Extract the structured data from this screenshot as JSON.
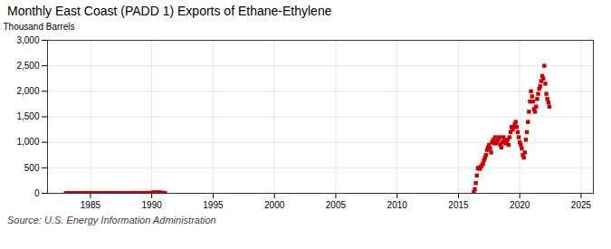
{
  "chart_data": {
    "type": "scatter",
    "title": "Monthly East Coast (PADD 1) Exports of Ethane-Ethylene",
    "ylabel": "Thousand Barrels",
    "caption": "Source: U.S. Energy Information Administration",
    "color": "#cc0000",
    "marker": "square",
    "grid": true,
    "xlim": [
      1981.5,
      2026
    ],
    "xticks": [
      1985,
      1990,
      1995,
      2000,
      2005,
      2010,
      2015,
      2020,
      2025
    ],
    "ylim": [
      0,
      3000
    ],
    "yticks": [
      0,
      500,
      {
        "value": 1000,
        "label": "1,000"
      },
      {
        "value": 1500,
        "label": "1,500"
      },
      {
        "value": 2000,
        "label": "2,000"
      },
      {
        "value": 2500,
        "label": "2,500"
      },
      {
        "value": 3000,
        "label": "3,000"
      }
    ],
    "x": [
      1983.0,
      1983.25,
      1983.5,
      1983.75,
      1984.0,
      1984.25,
      1984.5,
      1984.75,
      1985.0,
      1985.25,
      1985.5,
      1985.75,
      1986.0,
      1986.25,
      1986.5,
      1986.75,
      1987.0,
      1987.25,
      1987.5,
      1987.75,
      1988.0,
      1988.25,
      1988.5,
      1988.75,
      1989.0,
      1989.25,
      1989.5,
      1989.75,
      1990.0,
      1990.0833,
      1990.1667,
      1990.25,
      1990.3333,
      1990.4167,
      1990.5,
      1990.5833,
      1990.6667,
      1990.75,
      1990.8333,
      1990.9167,
      1991.0,
      1991.0833,
      2016.25,
      2016.3333,
      2016.4167,
      2016.5,
      2016.5833,
      2016.6667,
      2016.75,
      2016.8333,
      2016.9167,
      2017.0,
      2017.0833,
      2017.1667,
      2017.25,
      2017.3333,
      2017.4167,
      2017.5,
      2017.5833,
      2017.6667,
      2017.75,
      2017.8333,
      2017.9167,
      2018.0,
      2018.0833,
      2018.1667,
      2018.25,
      2018.3333,
      2018.4167,
      2018.5,
      2018.5833,
      2018.6667,
      2018.75,
      2018.8333,
      2018.9167,
      2019.0,
      2019.0833,
      2019.1667,
      2019.25,
      2019.3333,
      2019.4167,
      2019.5,
      2019.5833,
      2019.6667,
      2019.75,
      2019.8333,
      2019.9167,
      2020.0,
      2020.0833,
      2020.1667,
      2020.25,
      2020.3333,
      2020.4167,
      2020.5,
      2020.5833,
      2020.6667,
      2020.75,
      2020.8333,
      2020.9167,
      2021.0,
      2021.0833,
      2021.1667,
      2021.25,
      2021.3333,
      2021.4167,
      2021.5,
      2021.5833,
      2021.6667,
      2021.75,
      2021.8333,
      2021.9167,
      2022.0,
      2022.0833,
      2022.1667,
      2022.25,
      2022.3333,
      2022.4167
    ],
    "values": [
      3,
      5,
      4,
      6,
      5,
      4,
      7,
      5,
      4,
      6,
      5,
      3,
      5,
      4,
      6,
      5,
      4,
      7,
      5,
      4,
      6,
      5,
      8,
      6,
      7,
      5,
      8,
      6,
      10,
      12,
      15,
      14,
      13,
      11,
      16,
      14,
      12,
      10,
      9,
      8,
      7,
      5,
      20,
      80,
      200,
      350,
      490,
      500,
      480,
      520,
      550,
      580,
      650,
      700,
      750,
      850,
      900,
      950,
      880,
      800,
      1000,
      1050,
      980,
      1100,
      980,
      1020,
      1050,
      1100,
      950,
      900,
      1000,
      1100,
      1050,
      980,
      1000,
      1050,
      950,
      1100,
      1200,
      1300,
      1250,
      1300,
      1350,
      1400,
      1300,
      1200,
      1100,
      1000,
      950,
      880,
      750,
      700,
      800,
      1050,
      1200,
      1400,
      1600,
      1800,
      2000,
      1900,
      1800,
      1650,
      1600,
      1700,
      1850,
      1950,
      2050,
      2100,
      2200,
      2300,
      2250,
      2500,
      2150,
      1950,
      1850,
      1780,
      1700
    ]
  }
}
